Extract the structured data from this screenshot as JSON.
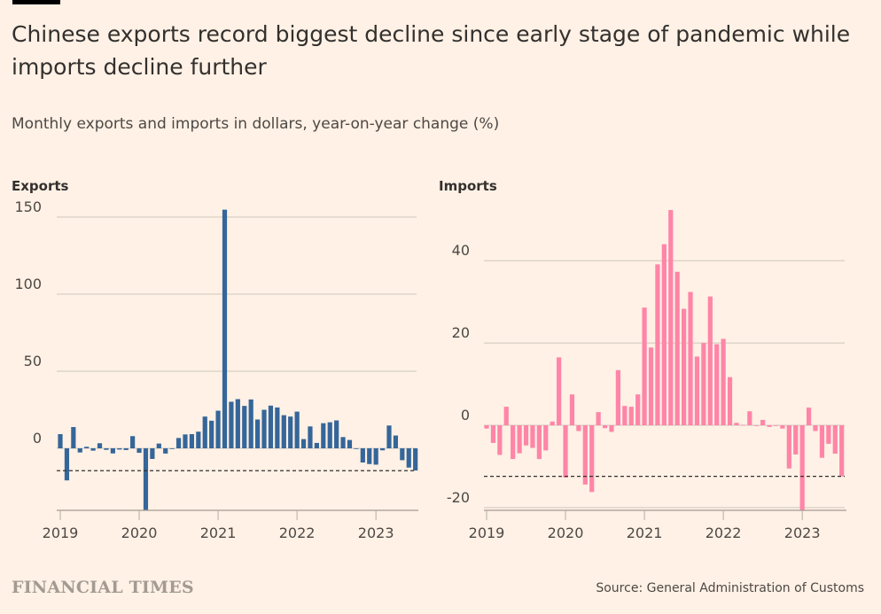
{
  "header": {
    "title": "Chinese exports record biggest decline since early stage of pandemic while imports decline further",
    "subtitle": "Monthly exports and imports in dollars, year-on-year change (%)"
  },
  "footer": {
    "logo": "FINANCIAL TIMES",
    "source": "Source: General Administration of Customs"
  },
  "chart_data": [
    {
      "type": "bar",
      "title": "Exports",
      "color": "#356699",
      "x_start": "2019-01",
      "x_end": "2023-07",
      "frequency": "monthly",
      "xticks": [
        "2019",
        "2020",
        "2021",
        "2022",
        "2023"
      ],
      "yticks": [
        0,
        50,
        100,
        150
      ],
      "ylim": [
        -41,
        155
      ],
      "grid": true,
      "reference_line": {
        "value": -14.5,
        "style": "dashed"
      },
      "values": [
        9.2,
        -20.8,
        13.8,
        -2.7,
        1.0,
        -1.5,
        3.3,
        -1.0,
        -3.3,
        -0.8,
        -1.1,
        7.9,
        -2.9,
        -40.6,
        -6.9,
        3.1,
        -3.4,
        -0.1,
        6.7,
        9.0,
        9.2,
        10.8,
        20.6,
        17.9,
        24.4,
        154.8,
        30.2,
        31.9,
        27.5,
        31.7,
        18.7,
        25.0,
        27.7,
        26.5,
        21.5,
        20.6,
        23.8,
        6.0,
        14.2,
        3.5,
        16.3,
        16.9,
        18.1,
        7.3,
        5.4,
        -0.4,
        -9.2,
        -10.2,
        -10.6,
        -1.3,
        14.8,
        8.3,
        -7.7,
        -12.5,
        -14.4
      ]
    },
    {
      "type": "bar",
      "title": "Imports",
      "color": "#ff85a8",
      "x_start": "2019-01",
      "x_end": "2023-07",
      "frequency": "monthly",
      "xticks": [
        "2019",
        "2020",
        "2021",
        "2022",
        "2023"
      ],
      "yticks": [
        -20,
        0,
        20,
        40
      ],
      "ylim": [
        -21,
        52.5
      ],
      "grid": true,
      "reference_line": {
        "value": -12.4,
        "style": "dashed"
      },
      "values": [
        -0.8,
        -4.3,
        -7.2,
        4.5,
        -8.2,
        -6.8,
        -4.9,
        -5.5,
        -8.2,
        -6.1,
        0.9,
        16.5,
        -12.7,
        7.5,
        -1.4,
        -14.4,
        -16.2,
        3.2,
        -0.7,
        -1.6,
        13.4,
        4.7,
        4.5,
        7.5,
        28.6,
        18.9,
        39.1,
        44.0,
        52.3,
        37.3,
        28.3,
        32.4,
        16.7,
        20.0,
        31.3,
        19.7,
        21.0,
        11.7,
        0.6,
        0.1,
        3.4,
        -0.1,
        1.3,
        -0.4,
        0.0,
        -0.8,
        -10.5,
        -7.1,
        -21.3,
        4.3,
        -1.4,
        -7.9,
        -4.5,
        -6.9,
        -12.4
      ]
    }
  ]
}
